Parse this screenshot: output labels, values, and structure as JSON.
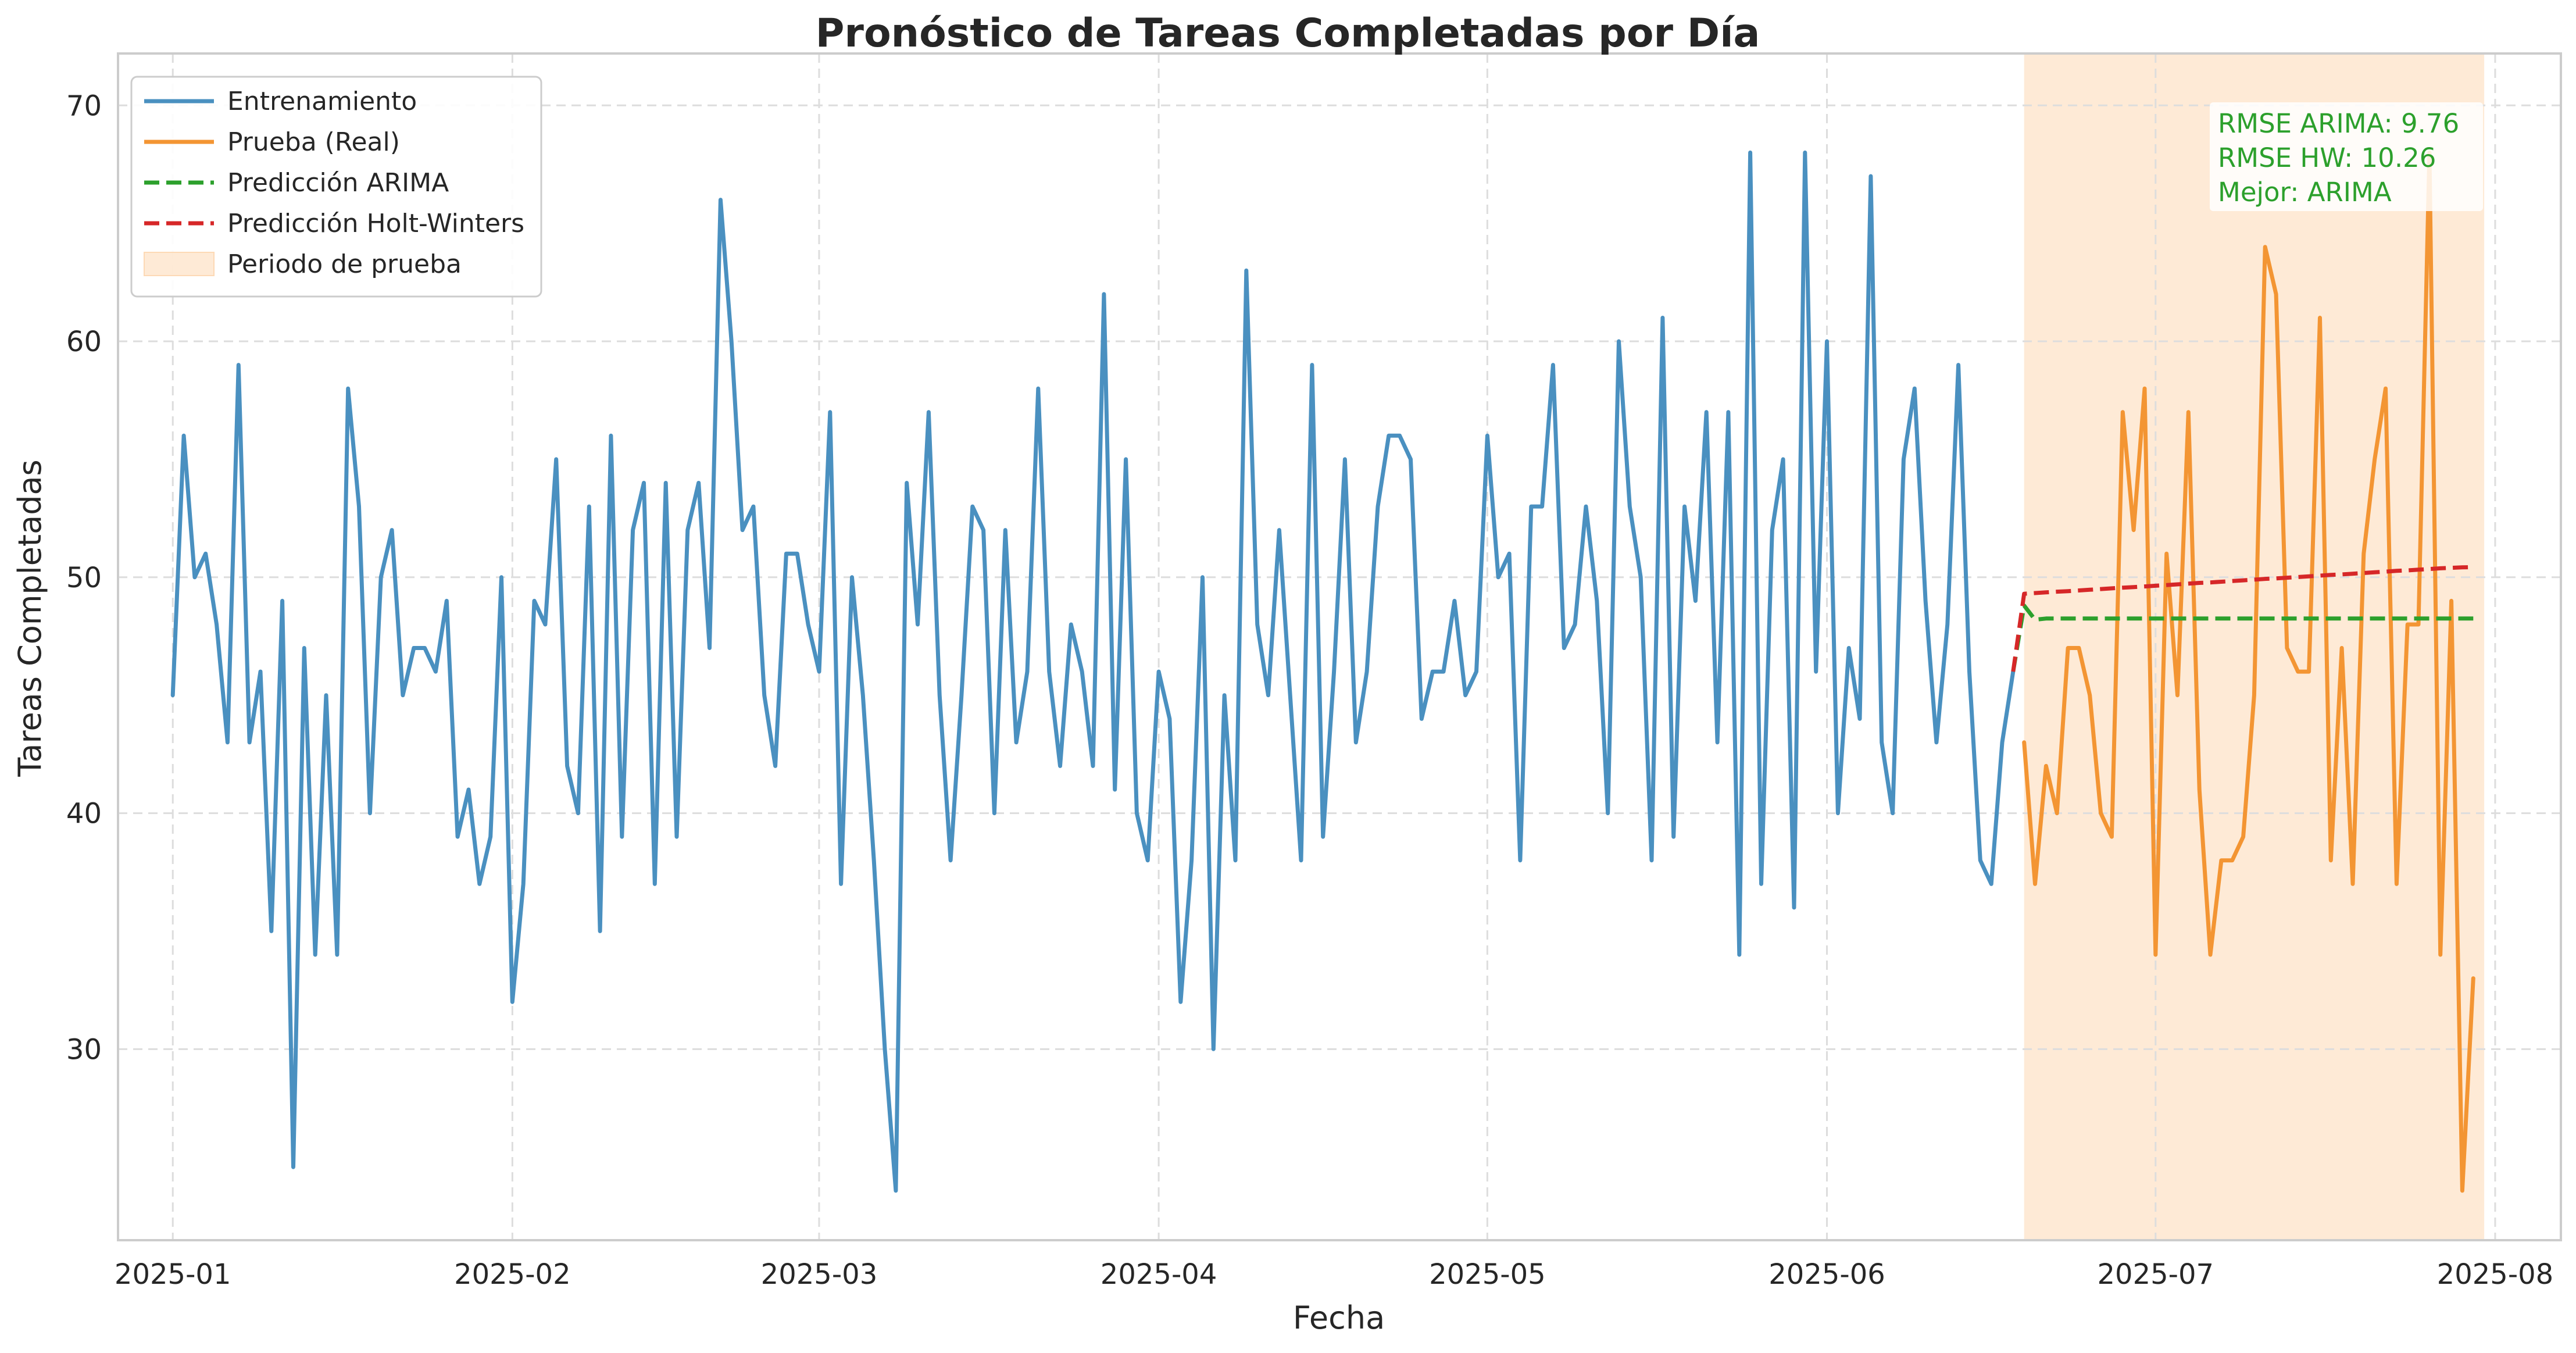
{
  "chart_data": {
    "type": "line",
    "title": "Pronóstico de Tareas Completadas por Día",
    "xlabel": "Fecha",
    "ylabel": "Tareas Completadas",
    "x_start": "2025-01-01",
    "xlim": [
      "2024-12-27",
      "2025-08-07"
    ],
    "ylim": [
      21.9,
      72.2
    ],
    "x_ticks": [
      "2025-01-01",
      "2025-02-01",
      "2025-03-01",
      "2025-04-01",
      "2025-05-01",
      "2025-06-01",
      "2025-07-01",
      "2025-08-01"
    ],
    "x_tick_labels": [
      "2025-01",
      "2025-02",
      "2025-03",
      "2025-04",
      "2025-05",
      "2025-06",
      "2025-07",
      "2025-08"
    ],
    "y_ticks": [
      30,
      40,
      50,
      60,
      70
    ],
    "grid": true,
    "legend_position": "top-left",
    "test_period": {
      "label": "Periodo de prueba",
      "start": "2025-06-19",
      "end": "2025-07-31",
      "color": "#fdd9b5"
    },
    "series": [
      {
        "name": "Entrenamiento",
        "color": "#4a90c0",
        "dash": "solid",
        "x_start": "2025-01-01",
        "values": [
          45,
          56,
          50,
          51,
          48,
          43,
          59,
          43,
          46,
          35,
          49,
          25,
          47,
          34,
          45,
          34,
          58,
          53,
          40,
          50,
          52,
          45,
          47,
          47,
          46,
          49,
          39,
          41,
          37,
          39,
          50,
          32,
          37,
          49,
          48,
          55,
          42,
          40,
          53,
          35,
          56,
          39,
          52,
          54,
          37,
          54,
          39,
          52,
          54,
          47,
          66,
          60,
          52,
          53,
          45,
          42,
          51,
          51,
          48,
          46,
          57,
          37,
          50,
          45,
          38,
          30,
          24,
          54,
          48,
          57,
          45,
          38,
          45,
          53,
          52,
          40,
          52,
          43,
          46,
          58,
          46,
          42,
          48,
          46,
          42,
          62,
          41,
          55,
          40,
          38,
          46,
          44,
          32,
          38,
          50,
          30,
          45,
          38,
          63,
          48,
          45,
          52,
          45,
          38,
          59,
          39,
          46,
          55,
          43,
          46,
          53,
          56,
          56,
          55,
          44,
          46,
          46,
          49,
          45,
          46,
          56,
          50,
          51,
          38,
          53,
          53,
          59,
          47,
          48,
          53,
          49,
          40,
          60,
          53,
          50,
          38,
          61,
          39,
          53,
          49,
          57,
          43,
          57,
          34,
          68,
          37,
          52,
          55,
          36,
          68,
          46,
          60,
          40,
          47,
          44,
          67,
          43,
          40,
          55,
          58,
          49,
          43,
          48,
          59,
          46,
          38,
          37,
          43,
          46
        ]
      },
      {
        "name": "Prueba (Real)",
        "color": "#f39533",
        "dash": "solid",
        "x_start": "2025-06-19",
        "values": [
          43,
          37,
          42,
          40,
          47,
          47,
          45,
          40,
          39,
          57,
          52,
          58,
          34,
          51,
          45,
          57,
          41,
          34,
          38,
          38,
          39,
          45,
          64,
          62,
          47,
          46,
          46,
          61,
          38,
          47,
          37,
          51,
          55,
          58,
          37,
          48,
          48,
          68,
          34,
          49,
          24,
          33
        ]
      },
      {
        "name": "Predicción ARIMA",
        "color": "#2ca02c",
        "dash": "dashed",
        "x_start": "2025-06-18",
        "values": [
          46,
          48.8,
          48.2,
          48.25,
          48.25,
          48.25,
          48.25,
          48.25,
          48.25,
          48.25,
          48.25,
          48.25,
          48.25,
          48.25,
          48.25,
          48.25,
          48.25,
          48.25,
          48.25,
          48.25,
          48.25,
          48.25,
          48.25,
          48.25,
          48.25,
          48.25,
          48.25,
          48.25,
          48.25,
          48.25,
          48.25,
          48.25,
          48.25,
          48.25,
          48.25,
          48.25,
          48.25,
          48.25,
          48.25,
          48.25,
          48.25,
          48.25,
          48.25
        ]
      },
      {
        "name": "Predicción Holt-Winters",
        "color": "#d62728",
        "dash": "dashed",
        "x_start": "2025-06-18",
        "values": [
          46,
          49.3,
          49.33,
          49.36,
          49.39,
          49.41,
          49.44,
          49.47,
          49.5,
          49.53,
          49.56,
          49.58,
          49.61,
          49.64,
          49.67,
          49.7,
          49.73,
          49.76,
          49.78,
          49.81,
          49.84,
          49.87,
          49.9,
          49.93,
          49.95,
          49.98,
          50.01,
          50.04,
          50.07,
          50.1,
          50.12,
          50.15,
          50.18,
          50.21,
          50.24,
          50.27,
          50.29,
          50.32,
          50.35,
          50.38,
          50.4,
          50.42,
          50.43
        ]
      }
    ],
    "annotation": {
      "lines": [
        "RMSE ARIMA: 9.76",
        "RMSE HW: 10.26",
        "Mejor: ARIMA"
      ],
      "color": "#2ca02c"
    }
  }
}
